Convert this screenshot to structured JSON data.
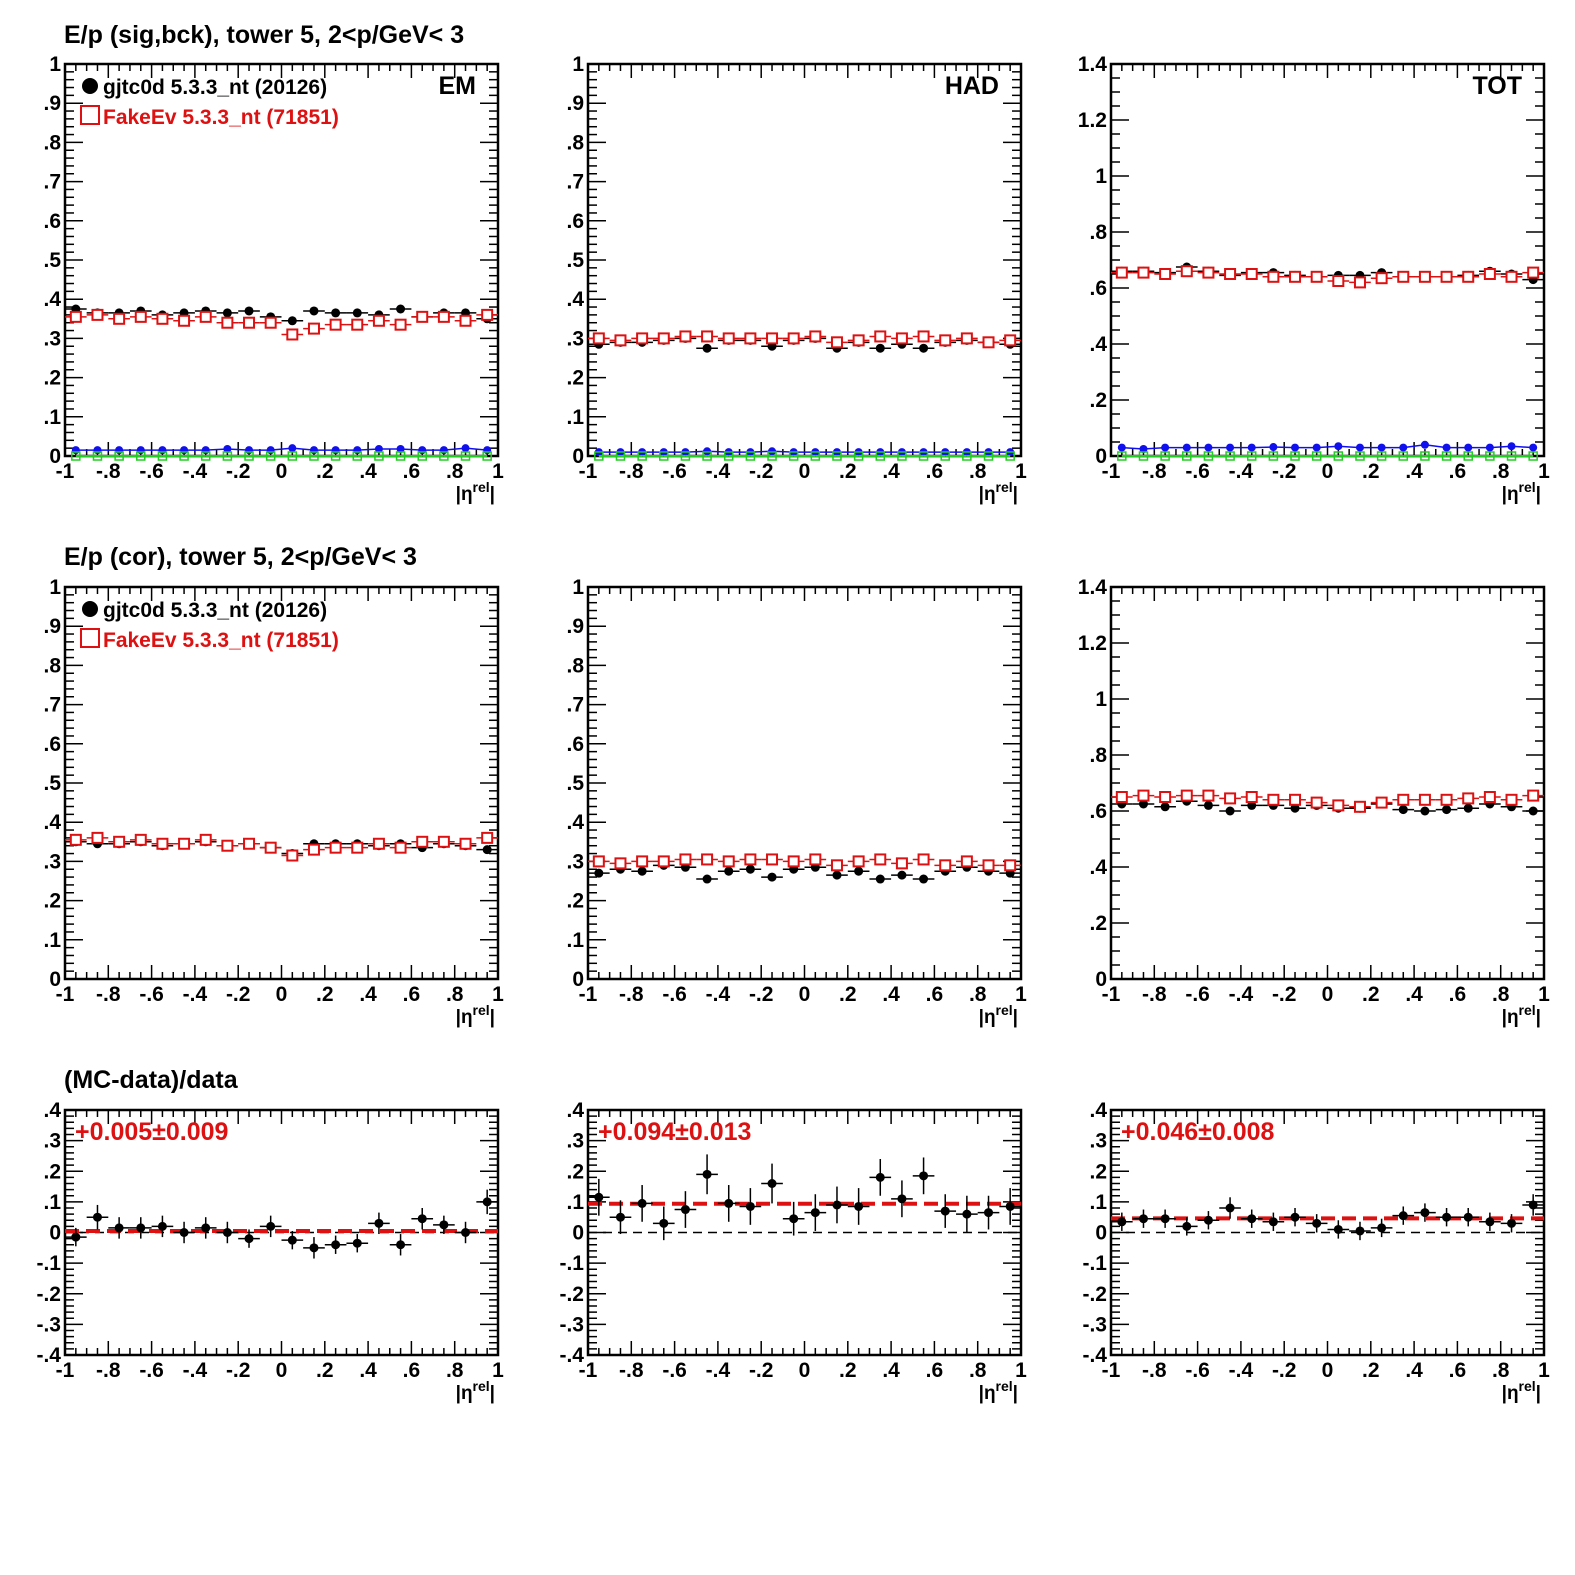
{
  "colors": {
    "data": "#000000",
    "mc": "#dd1111",
    "blue": "#1010ee",
    "green": "#22cc22",
    "axis": "#000000"
  },
  "row_titles": [
    "E/p (sig,bck), tower 5,  2<p/GeV< 3",
    "E/p (cor), tower 5,  2<p/GeV< 3",
    "(MC-data)/data"
  ],
  "legend": {
    "data_label": "gjtc0d 5.3.3_nt (20126)",
    "mc_label": "FakeEv 5.3.3_nt (71851)"
  },
  "x_axis_title": "|η^rel|",
  "chart_data": [
    {
      "id": "sigbck-em",
      "type": "scatter",
      "row": 0,
      "col": 0,
      "corner_label": "EM",
      "xlim": [
        -1,
        1
      ],
      "ylim": [
        0,
        1
      ],
      "x": [
        -0.95,
        -0.85,
        -0.75,
        -0.65,
        -0.55,
        -0.45,
        -0.35,
        -0.25,
        -0.15,
        -0.05,
        0.05,
        0.15,
        0.25,
        0.35,
        0.45,
        0.55,
        0.65,
        0.75,
        0.85,
        0.95
      ],
      "series": [
        {
          "name": "gjtc0d 5.3.3_nt (20126)",
          "style": "data",
          "values": [
            0.375,
            0.365,
            0.365,
            0.37,
            0.36,
            0.365,
            0.37,
            0.365,
            0.37,
            0.355,
            0.345,
            0.37,
            0.365,
            0.365,
            0.36,
            0.375,
            0.355,
            0.365,
            0.365,
            0.35
          ]
        },
        {
          "name": "FakeEv 5.3.3_nt (71851)",
          "style": "mc",
          "values": [
            0.355,
            0.36,
            0.35,
            0.355,
            0.35,
            0.345,
            0.355,
            0.34,
            0.34,
            0.34,
            0.31,
            0.325,
            0.335,
            0.335,
            0.345,
            0.335,
            0.355,
            0.355,
            0.345,
            0.36
          ]
        },
        {
          "style": "blue",
          "values": [
            0.015,
            0.015,
            0.015,
            0.015,
            0.015,
            0.015,
            0.015,
            0.018,
            0.015,
            0.015,
            0.02,
            0.015,
            0.015,
            0.015,
            0.018,
            0.018,
            0.015,
            0.015,
            0.02,
            0.015
          ]
        },
        {
          "style": "green",
          "values": [
            0,
            0,
            0,
            0,
            0,
            0,
            0,
            0,
            0,
            0,
            0,
            0,
            0,
            0,
            0,
            0,
            0,
            0,
            0,
            0
          ]
        }
      ]
    },
    {
      "id": "sigbck-had",
      "type": "scatter",
      "row": 0,
      "col": 1,
      "corner_label": "HAD",
      "xlim": [
        -1,
        1
      ],
      "ylim": [
        0,
        1
      ],
      "x": [
        -0.95,
        -0.85,
        -0.75,
        -0.65,
        -0.55,
        -0.45,
        -0.35,
        -0.25,
        -0.15,
        -0.05,
        0.05,
        0.15,
        0.25,
        0.35,
        0.45,
        0.55,
        0.65,
        0.75,
        0.85,
        0.95
      ],
      "series": [
        {
          "name": "gjtc0d 5.3.3_nt (20126)",
          "style": "data",
          "values": [
            0.285,
            0.29,
            0.29,
            0.295,
            0.3,
            0.275,
            0.295,
            0.295,
            0.28,
            0.295,
            0.3,
            0.275,
            0.29,
            0.275,
            0.285,
            0.275,
            0.29,
            0.295,
            0.29,
            0.285
          ]
        },
        {
          "name": "FakeEv 5.3.3_nt (71851)",
          "style": "mc",
          "values": [
            0.3,
            0.295,
            0.3,
            0.3,
            0.305,
            0.305,
            0.3,
            0.3,
            0.3,
            0.3,
            0.305,
            0.29,
            0.295,
            0.305,
            0.3,
            0.305,
            0.295,
            0.3,
            0.29,
            0.295
          ]
        },
        {
          "style": "blue",
          "values": [
            0.01,
            0.01,
            0.01,
            0.01,
            0.01,
            0.012,
            0.01,
            0.01,
            0.012,
            0.01,
            0.01,
            0.01,
            0.01,
            0.01,
            0.01,
            0.01,
            0.01,
            0.01,
            0.01,
            0.01
          ]
        },
        {
          "style": "green",
          "values": [
            0,
            0,
            0,
            0,
            0,
            0,
            0,
            0,
            0,
            0,
            0,
            0,
            0,
            0,
            0,
            0,
            0,
            0,
            0,
            0
          ]
        }
      ]
    },
    {
      "id": "sigbck-tot",
      "type": "scatter",
      "row": 0,
      "col": 2,
      "corner_label": "TOT",
      "xlim": [
        -1,
        1
      ],
      "ylim": [
        0,
        1.4
      ],
      "x": [
        -0.95,
        -0.85,
        -0.75,
        -0.65,
        -0.55,
        -0.45,
        -0.35,
        -0.25,
        -0.15,
        -0.05,
        0.05,
        0.15,
        0.25,
        0.35,
        0.45,
        0.55,
        0.65,
        0.75,
        0.85,
        0.95
      ],
      "series": [
        {
          "name": "gjtc0d 5.3.3_nt (20126)",
          "style": "data",
          "values": [
            0.66,
            0.66,
            0.655,
            0.675,
            0.66,
            0.645,
            0.655,
            0.655,
            0.645,
            0.64,
            0.645,
            0.645,
            0.655,
            0.64,
            0.64,
            0.64,
            0.645,
            0.66,
            0.65,
            0.63
          ]
        },
        {
          "name": "FakeEv 5.3.3_nt (71851)",
          "style": "mc",
          "values": [
            0.655,
            0.655,
            0.65,
            0.66,
            0.655,
            0.65,
            0.65,
            0.64,
            0.64,
            0.64,
            0.625,
            0.62,
            0.635,
            0.64,
            0.64,
            0.64,
            0.64,
            0.65,
            0.64,
            0.655
          ]
        },
        {
          "style": "blue",
          "values": [
            0.03,
            0.025,
            0.03,
            0.03,
            0.03,
            0.03,
            0.03,
            0.032,
            0.03,
            0.03,
            0.035,
            0.03,
            0.03,
            0.03,
            0.04,
            0.03,
            0.03,
            0.03,
            0.035,
            0.03
          ]
        },
        {
          "style": "green",
          "values": [
            0,
            0,
            0,
            0,
            0,
            0,
            0,
            0,
            0,
            0,
            0,
            0,
            0,
            0,
            0,
            0,
            0,
            0,
            0,
            0
          ]
        }
      ]
    },
    {
      "id": "cor-em",
      "type": "scatter",
      "row": 1,
      "col": 0,
      "xlim": [
        -1,
        1
      ],
      "ylim": [
        0,
        1
      ],
      "x": [
        -0.95,
        -0.85,
        -0.75,
        -0.65,
        -0.55,
        -0.45,
        -0.35,
        -0.25,
        -0.15,
        -0.05,
        0.05,
        0.15,
        0.25,
        0.35,
        0.45,
        0.55,
        0.65,
        0.75,
        0.85,
        0.95
      ],
      "series": [
        {
          "name": "gjtc0d 5.3.3_nt (20126)",
          "style": "data",
          "values": [
            0.35,
            0.345,
            0.345,
            0.35,
            0.34,
            0.345,
            0.35,
            0.34,
            0.345,
            0.335,
            0.32,
            0.345,
            0.345,
            0.345,
            0.34,
            0.345,
            0.335,
            0.345,
            0.34,
            0.33
          ]
        },
        {
          "name": "FakeEv 5.3.3_nt (71851)",
          "style": "mc",
          "values": [
            0.355,
            0.36,
            0.35,
            0.355,
            0.345,
            0.345,
            0.355,
            0.34,
            0.345,
            0.335,
            0.315,
            0.33,
            0.335,
            0.335,
            0.345,
            0.335,
            0.35,
            0.35,
            0.345,
            0.36
          ]
        }
      ]
    },
    {
      "id": "cor-had",
      "type": "scatter",
      "row": 1,
      "col": 1,
      "xlim": [
        -1,
        1
      ],
      "ylim": [
        0,
        1
      ],
      "x": [
        -0.95,
        -0.85,
        -0.75,
        -0.65,
        -0.55,
        -0.45,
        -0.35,
        -0.25,
        -0.15,
        -0.05,
        0.05,
        0.15,
        0.25,
        0.35,
        0.45,
        0.55,
        0.65,
        0.75,
        0.85,
        0.95
      ],
      "series": [
        {
          "name": "gjtc0d 5.3.3_nt (20126)",
          "style": "data",
          "values": [
            0.27,
            0.28,
            0.275,
            0.29,
            0.285,
            0.255,
            0.275,
            0.28,
            0.26,
            0.28,
            0.285,
            0.265,
            0.275,
            0.255,
            0.265,
            0.255,
            0.275,
            0.285,
            0.275,
            0.27
          ]
        },
        {
          "name": "FakeEv 5.3.3_nt (71851)",
          "style": "mc",
          "values": [
            0.3,
            0.295,
            0.3,
            0.3,
            0.305,
            0.305,
            0.3,
            0.305,
            0.305,
            0.3,
            0.305,
            0.29,
            0.3,
            0.305,
            0.295,
            0.305,
            0.29,
            0.3,
            0.29,
            0.29
          ]
        }
      ]
    },
    {
      "id": "cor-tot",
      "type": "scatter",
      "row": 1,
      "col": 2,
      "xlim": [
        -1,
        1
      ],
      "ylim": [
        0,
        1.4
      ],
      "x": [
        -0.95,
        -0.85,
        -0.75,
        -0.65,
        -0.55,
        -0.45,
        -0.35,
        -0.25,
        -0.15,
        -0.05,
        0.05,
        0.15,
        0.25,
        0.35,
        0.45,
        0.55,
        0.65,
        0.75,
        0.85,
        0.95
      ],
      "series": [
        {
          "name": "gjtc0d 5.3.3_nt (20126)",
          "style": "data",
          "values": [
            0.625,
            0.625,
            0.615,
            0.635,
            0.62,
            0.6,
            0.62,
            0.62,
            0.61,
            0.62,
            0.61,
            0.61,
            0.625,
            0.605,
            0.6,
            0.605,
            0.61,
            0.625,
            0.615,
            0.6
          ]
        },
        {
          "name": "FakeEv 5.3.3_nt (71851)",
          "style": "mc",
          "values": [
            0.65,
            0.655,
            0.65,
            0.655,
            0.655,
            0.645,
            0.65,
            0.64,
            0.64,
            0.63,
            0.62,
            0.615,
            0.63,
            0.64,
            0.64,
            0.64,
            0.645,
            0.65,
            0.64,
            0.655
          ]
        }
      ]
    },
    {
      "id": "ratio-em",
      "type": "scatter",
      "row": 2,
      "col": 0,
      "fit_label": "+0.005±0.009",
      "fit_value": 0.005,
      "xlim": [
        -1,
        1
      ],
      "ylim": [
        -0.4,
        0.4
      ],
      "x": [
        -0.95,
        -0.85,
        -0.75,
        -0.65,
        -0.55,
        -0.45,
        -0.35,
        -0.25,
        -0.15,
        -0.05,
        0.05,
        0.15,
        0.25,
        0.35,
        0.45,
        0.55,
        0.65,
        0.75,
        0.85,
        0.95
      ],
      "series": [
        {
          "style": "ratio",
          "values": [
            -0.015,
            0.05,
            0.015,
            0.015,
            0.02,
            0.0,
            0.015,
            0.0,
            -0.02,
            0.02,
            -0.025,
            -0.05,
            -0.04,
            -0.035,
            0.03,
            -0.04,
            0.045,
            0.025,
            0.0,
            0.1
          ],
          "errors": [
            0.03,
            0.04,
            0.035,
            0.035,
            0.035,
            0.035,
            0.035,
            0.035,
            0.03,
            0.035,
            0.03,
            0.035,
            0.03,
            0.03,
            0.035,
            0.035,
            0.035,
            0.03,
            0.035,
            0.04
          ]
        }
      ]
    },
    {
      "id": "ratio-had",
      "type": "scatter",
      "row": 2,
      "col": 1,
      "fit_label": "+0.094±0.013",
      "fit_value": 0.094,
      "xlim": [
        -1,
        1
      ],
      "ylim": [
        -0.4,
        0.4
      ],
      "x": [
        -0.95,
        -0.85,
        -0.75,
        -0.65,
        -0.55,
        -0.45,
        -0.35,
        -0.25,
        -0.15,
        -0.05,
        0.05,
        0.15,
        0.25,
        0.35,
        0.45,
        0.55,
        0.65,
        0.75,
        0.85,
        0.95
      ],
      "series": [
        {
          "style": "ratio",
          "values": [
            0.115,
            0.05,
            0.095,
            0.03,
            0.075,
            0.19,
            0.095,
            0.085,
            0.16,
            0.045,
            0.065,
            0.09,
            0.085,
            0.18,
            0.11,
            0.185,
            0.07,
            0.06,
            0.065,
            0.085
          ],
          "errors": [
            0.06,
            0.055,
            0.06,
            0.055,
            0.06,
            0.065,
            0.06,
            0.06,
            0.065,
            0.055,
            0.06,
            0.06,
            0.06,
            0.06,
            0.06,
            0.06,
            0.055,
            0.06,
            0.055,
            0.06
          ]
        }
      ]
    },
    {
      "id": "ratio-tot",
      "type": "scatter",
      "row": 2,
      "col": 2,
      "fit_label": "+0.046±0.008",
      "fit_value": 0.046,
      "xlim": [
        -1,
        1
      ],
      "ylim": [
        -0.4,
        0.4
      ],
      "x": [
        -0.95,
        -0.85,
        -0.75,
        -0.65,
        -0.55,
        -0.45,
        -0.35,
        -0.25,
        -0.15,
        -0.05,
        0.05,
        0.15,
        0.25,
        0.35,
        0.45,
        0.55,
        0.65,
        0.75,
        0.85,
        0.95
      ],
      "series": [
        {
          "style": "ratio",
          "values": [
            0.035,
            0.045,
            0.045,
            0.02,
            0.04,
            0.08,
            0.045,
            0.035,
            0.05,
            0.03,
            0.01,
            0.005,
            0.015,
            0.055,
            0.065,
            0.05,
            0.05,
            0.035,
            0.03,
            0.09
          ],
          "errors": [
            0.03,
            0.03,
            0.03,
            0.03,
            0.03,
            0.035,
            0.03,
            0.03,
            0.03,
            0.03,
            0.03,
            0.03,
            0.03,
            0.03,
            0.03,
            0.03,
            0.03,
            0.03,
            0.03,
            0.035
          ]
        }
      ]
    }
  ]
}
